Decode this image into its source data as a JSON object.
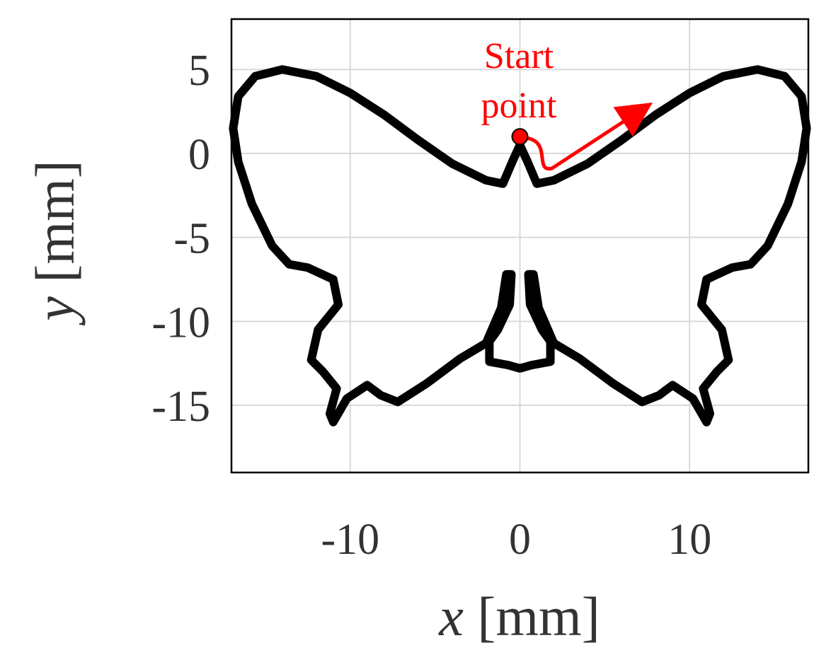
{
  "chart_data": {
    "type": "line",
    "title": "",
    "xlabel_var": "x",
    "xlabel_unit": "[mm]",
    "ylabel_var": "y",
    "ylabel_unit": "[mm]",
    "xlim": [
      -17,
      17
    ],
    "ylim": [
      -19,
      8
    ],
    "xticks": [
      -10,
      0,
      10
    ],
    "yticks": [
      5,
      0,
      -5,
      -10,
      -15
    ],
    "grid": true,
    "line_color": "#000000",
    "annotation": {
      "line1": "Start",
      "line2": "point",
      "color": "#ff0000",
      "point": [
        0,
        1
      ]
    },
    "series": [
      {
        "x": [
          0.0,
          0.45,
          1.0,
          2.0,
          4.0,
          6.0,
          8.0,
          10.0,
          12.0,
          14.0,
          15.6,
          16.6,
          16.9,
          16.6,
          15.8,
          14.6,
          13.6,
          12.5,
          11.0,
          10.7,
          11.9,
          12.3,
          11.6,
          10.8,
          11.2,
          11.0,
          10.2,
          9.0,
          8.2,
          7.2,
          5.5,
          3.5,
          2.0,
          1.1,
          0.8,
          0.5,
          0.6,
          1.3,
          1.8,
          1.8,
          0.7,
          0.0,
          -0.7,
          -1.8,
          -1.8,
          -1.3,
          -0.6,
          -0.5,
          -0.8,
          -1.1,
          -2.0,
          -3.5,
          -5.5,
          -7.2,
          -8.2,
          -9.0,
          -10.2,
          -11.0,
          -11.2,
          -10.8,
          -11.6,
          -12.3,
          -11.9,
          -10.7,
          -11.0,
          -12.5,
          -13.6,
          -14.6,
          -15.8,
          -16.6,
          -16.9,
          -16.6,
          -15.6,
          -14.0,
          -12.0,
          -10.0,
          -8.0,
          -6.0,
          -4.0,
          -2.0,
          -1.0,
          -0.45,
          0.0
        ],
        "y": [
          0.5,
          -0.5,
          -1.8,
          -1.6,
          -0.6,
          0.8,
          2.3,
          3.6,
          4.6,
          5.0,
          4.6,
          3.4,
          1.5,
          -0.5,
          -3.0,
          -5.5,
          -6.6,
          -6.8,
          -7.5,
          -9.0,
          -10.5,
          -12.3,
          -13.0,
          -14.0,
          -15.5,
          -16.0,
          -14.6,
          -13.8,
          -14.4,
          -14.8,
          -13.7,
          -12.2,
          -11.3,
          -9.2,
          -7.2,
          -7.2,
          -9.0,
          -10.5,
          -11.2,
          -12.4,
          -12.6,
          -12.8,
          -12.6,
          -12.4,
          -11.2,
          -10.5,
          -9.0,
          -7.2,
          -7.2,
          -9.2,
          -11.3,
          -12.2,
          -13.7,
          -14.8,
          -14.4,
          -13.8,
          -14.6,
          -16.0,
          -15.5,
          -14.0,
          -13.0,
          -12.3,
          -10.5,
          -9.0,
          -7.5,
          -6.8,
          -6.6,
          -5.5,
          -3.0,
          -0.5,
          1.5,
          3.4,
          4.6,
          5.0,
          4.6,
          3.6,
          2.3,
          0.8,
          -0.6,
          -1.6,
          -1.8,
          -0.5,
          0.5
        ]
      }
    ]
  }
}
